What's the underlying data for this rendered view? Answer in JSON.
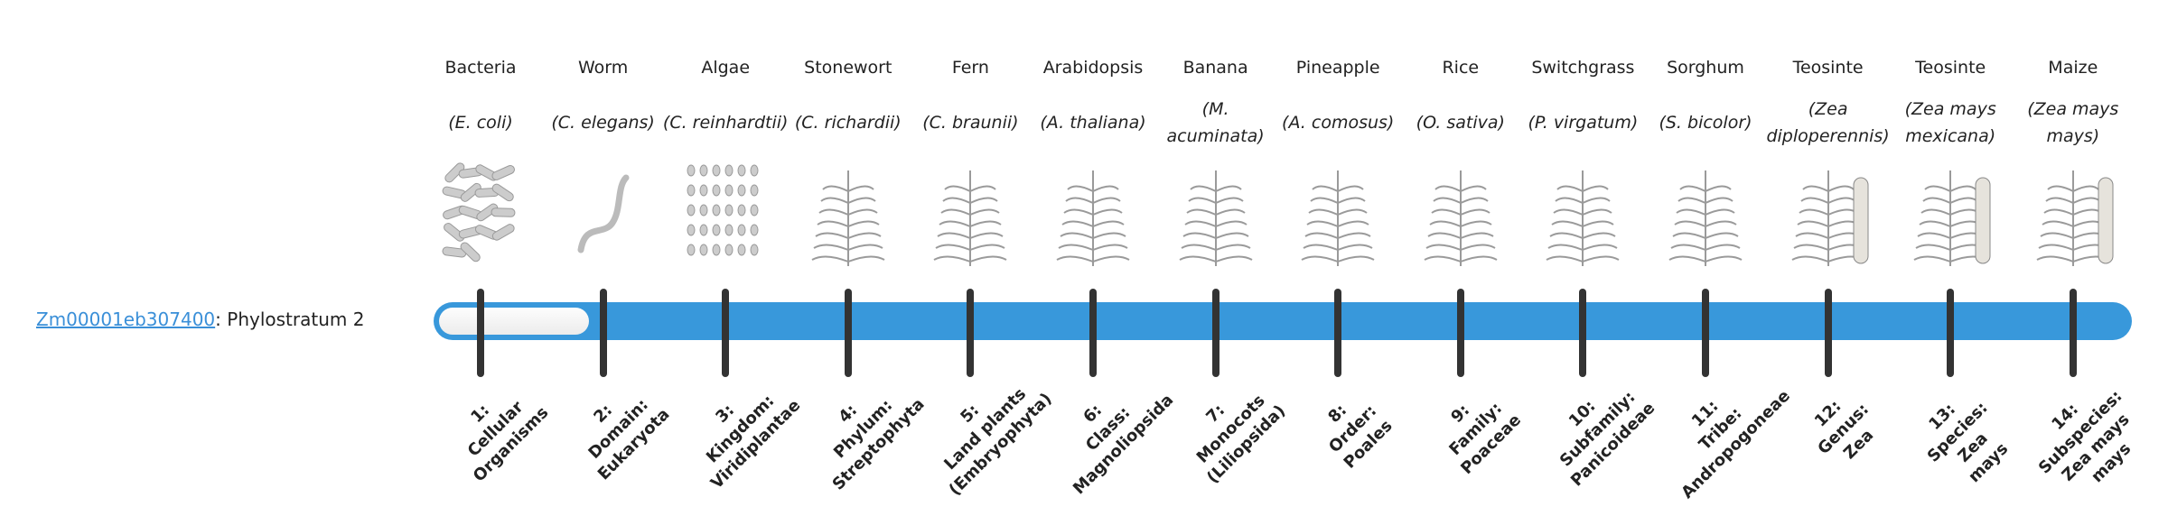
{
  "gene": {
    "id": "Zm00001eb307400",
    "separator": ":",
    "status": "Phylostratum 2"
  },
  "phylostratum": {
    "current": 2,
    "total": 14
  },
  "colors": {
    "bar": "#3898db",
    "fill": "#f5f5f5",
    "tick": "#333333",
    "link": "#3a8fd8"
  },
  "strata": [
    {
      "common": "Bacteria",
      "sci": "(E. coli)",
      "icon": "bacteria-icon",
      "label": [
        "1:",
        "Cellular",
        "Organisms"
      ]
    },
    {
      "common": "Worm",
      "sci": "(C. elegans)",
      "icon": "worm-icon",
      "label": [
        "2:",
        "Domain:",
        "Eukaryota"
      ]
    },
    {
      "common": "Algae",
      "sci": "(C. reinhardtii)",
      "icon": "algae-icon",
      "label": [
        "3:",
        "Kingdom:",
        "Viridiplantae"
      ]
    },
    {
      "common": "Stonewort",
      "sci": "(C. richardii)",
      "icon": "stonewort-icon",
      "label": [
        "4:",
        "Phylum:",
        "Streptophyta"
      ]
    },
    {
      "common": "Fern",
      "sci": "(C. braunii)",
      "icon": "fern-icon",
      "label": [
        "5:",
        "Land plants",
        "(Embryophyta)"
      ]
    },
    {
      "common": "Arabidopsis",
      "sci": "(A. thaliana)",
      "icon": "arabidopsis-icon",
      "label": [
        "6:",
        "Class:",
        "Magnoliopsida"
      ]
    },
    {
      "common": "Banana",
      "sci": "(M. acuminata)",
      "icon": "banana-icon",
      "label": [
        "7:",
        "Monocots",
        "(Liliopsida)"
      ]
    },
    {
      "common": "Pineapple",
      "sci": "(A. comosus)",
      "icon": "pineapple-icon",
      "label": [
        "8:",
        "Order:",
        "Poales"
      ]
    },
    {
      "common": "Rice",
      "sci": "(O. sativa)",
      "icon": "rice-icon",
      "label": [
        "9:",
        "Family:",
        "Poaceae"
      ]
    },
    {
      "common": "Switchgrass",
      "sci": "(P. virgatum)",
      "icon": "switchgrass-icon",
      "label": [
        "10:",
        "Subfamily:",
        "Panicoideae"
      ]
    },
    {
      "common": "Sorghum",
      "sci": "(S. bicolor)",
      "icon": "sorghum-icon",
      "label": [
        "11:",
        "Tribe:",
        "Andropogoneae"
      ]
    },
    {
      "common": "Teosinte",
      "sci": "(Zea diploperennis)",
      "icon": "teosinte-icon",
      "label": [
        "12:",
        "Genus:",
        "Zea"
      ]
    },
    {
      "common": "Teosinte",
      "sci": "(Zea mays mexicana)",
      "icon": "teosinte-icon",
      "label": [
        "13:",
        "Species:",
        "Zea",
        "mays"
      ]
    },
    {
      "common": "Maize",
      "sci": "(Zea mays mays)",
      "icon": "maize-icon",
      "label": [
        "14:",
        "Subspecies:",
        "Zea mays",
        "mays"
      ]
    }
  ]
}
